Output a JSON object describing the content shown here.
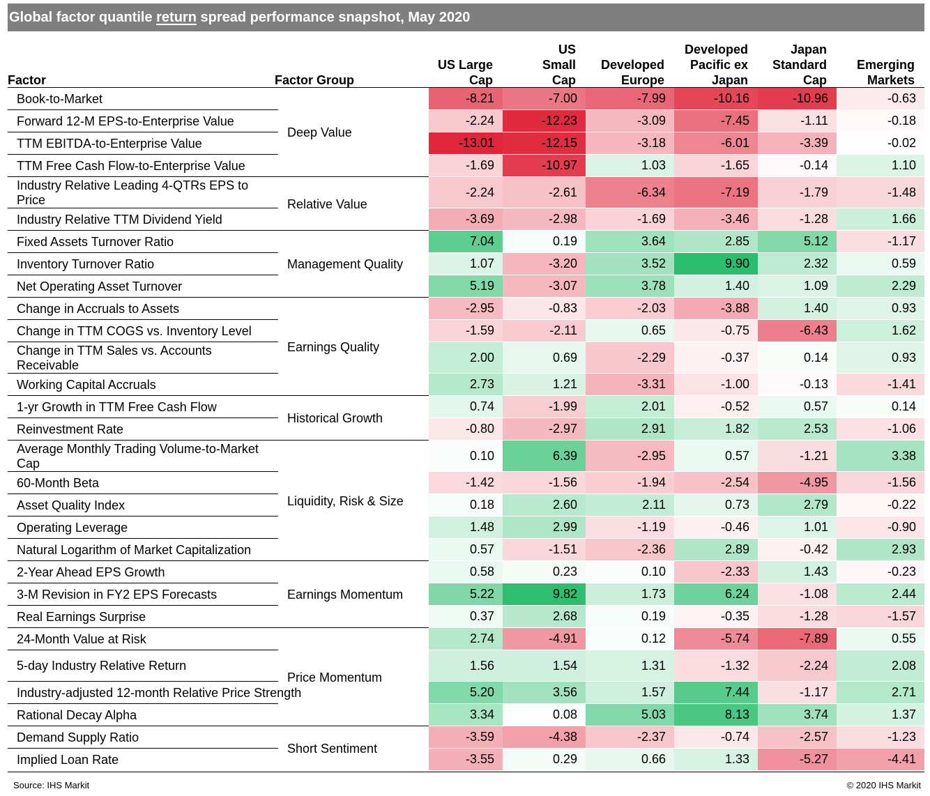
{
  "title": {
    "before": "Global factor quantile ",
    "underlined": "return",
    "after": " spread performance snapshot, May 2020"
  },
  "headers": {
    "factor": "Factor",
    "group": "Factor Group",
    "columns": [
      [
        "US Large",
        "Cap"
      ],
      [
        "US",
        "Small",
        "Cap"
      ],
      [
        "Developed",
        "Europe"
      ],
      [
        "Developed",
        "Pacific ex",
        "Japan"
      ],
      [
        "Japan",
        "Standard",
        "Cap"
      ],
      [
        "Emerging",
        "Markets"
      ]
    ]
  },
  "colors": {
    "title_bar": "#7f7f7f",
    "positive_max": "#00b050",
    "negative_max": "#e0263b",
    "neutral": "#ffffff"
  },
  "chart_data": {
    "type": "table",
    "columns": [
      "US Large Cap",
      "US Small Cap",
      "Developed Europe",
      "Developed Pacific ex Japan",
      "Japan Standard Cap",
      "Emerging Markets"
    ],
    "groups": [
      {
        "name": "Deep Value",
        "rows": [
          {
            "factor": "Book-to-Market",
            "values": [
              "-8.21",
              "-7.00",
              "-7.99",
              "-10.16",
              "-10.96",
              "-0.63"
            ]
          },
          {
            "factor": "Forward 12-M EPS-to-Enterprise Value",
            "values": [
              "-2.24",
              "-12.23",
              "-3.09",
              "-7.45",
              "-1.11",
              "-0.18"
            ]
          },
          {
            "factor": "TTM EBITDA-to-Enterprise Value",
            "values": [
              "-13.01",
              "-12.15",
              "-3.18",
              "-6.01",
              "-3.39",
              "-0.02"
            ]
          },
          {
            "factor": "TTM Free Cash Flow-to-Enterprise Value",
            "values": [
              "-1.69",
              "-10.97",
              "1.03",
              "-1.65",
              "-0.14",
              "1.10"
            ]
          }
        ]
      },
      {
        "name": "Relative Value",
        "rows": [
          {
            "factor": "Industry Relative Leading 4-QTRs EPS to Price",
            "values": [
              "-2.24",
              "-2.61",
              "-6.34",
              "-7.19",
              "-1.79",
              "-1.48"
            ]
          },
          {
            "factor": "Industry Relative TTM Dividend Yield",
            "values": [
              "-3.69",
              "-2.98",
              "-1.69",
              "-3.46",
              "-1.28",
              "1.66"
            ]
          }
        ]
      },
      {
        "name": "Management Quality",
        "rows": [
          {
            "factor": "Fixed Assets Turnover Ratio",
            "values": [
              "7.04",
              "0.19",
              "3.64",
              "2.85",
              "5.12",
              "-1.17"
            ]
          },
          {
            "factor": "Inventory Turnover Ratio",
            "values": [
              "1.07",
              "-3.20",
              "3.52",
              "9.90",
              "2.32",
              "0.59"
            ]
          },
          {
            "factor": "Net Operating Asset Turnover",
            "values": [
              "5.19",
              "-3.07",
              "3.78",
              "1.40",
              "1.09",
              "2.29"
            ]
          }
        ]
      },
      {
        "name": "Earnings Quality",
        "rows": [
          {
            "factor": "Change in Accruals to Assets",
            "values": [
              "-2.95",
              "-0.83",
              "-2.03",
              "-3.88",
              "1.40",
              "0.93"
            ]
          },
          {
            "factor": "Change in TTM COGS vs. Inventory Level",
            "values": [
              "-1.59",
              "-2.11",
              "0.65",
              "-0.75",
              "-6.43",
              "1.62"
            ]
          },
          {
            "factor": "Change in TTM Sales vs. Accounts Receivable",
            "values": [
              "2.00",
              "0.69",
              "-2.29",
              "-0.37",
              "0.14",
              "0.93"
            ]
          },
          {
            "factor": "Working Capital Accruals",
            "values": [
              "2.73",
              "1.21",
              "-3.31",
              "-1.00",
              "-0.13",
              "-1.41"
            ]
          }
        ]
      },
      {
        "name": "Historical Growth",
        "rows": [
          {
            "factor": "1-yr Growth in TTM Free Cash Flow",
            "values": [
              "0.74",
              "-1.99",
              "2.01",
              "-0.52",
              "0.57",
              "0.14"
            ]
          },
          {
            "factor": "Reinvestment Rate",
            "values": [
              "-0.80",
              "-2.97",
              "2.91",
              "1.82",
              "2.53",
              "-1.06"
            ]
          }
        ]
      },
      {
        "name": "Liquidity, Risk & Size",
        "rows": [
          {
            "factor": "Average Monthly Trading Volume-to-Market Cap",
            "values": [
              "0.10",
              "6.39",
              "-2.95",
              "0.57",
              "-1.21",
              "3.38"
            ]
          },
          {
            "factor": "60-Month Beta",
            "values": [
              "-1.42",
              "-1.56",
              "-1.94",
              "-2.54",
              "-4.95",
              "-1.56"
            ]
          },
          {
            "factor": "Asset Quality Index",
            "values": [
              "0.18",
              "2.60",
              "2.11",
              "0.73",
              "2.79",
              "-0.22"
            ]
          },
          {
            "factor": "Operating Leverage",
            "values": [
              "1.48",
              "2.99",
              "-1.19",
              "-0.46",
              "1.01",
              "-0.90"
            ]
          },
          {
            "factor": "Natural Logarithm of Market Capitalization",
            "values": [
              "0.57",
              "-1.51",
              "-2.36",
              "2.89",
              "-0.42",
              "2.93"
            ]
          }
        ]
      },
      {
        "name": "Earnings Momentum",
        "rows": [
          {
            "factor": "2-Year Ahead EPS Growth",
            "values": [
              "0.58",
              "0.23",
              "0.10",
              "-2.33",
              "1.43",
              "-0.23"
            ]
          },
          {
            "factor": "3-M Revision in FY2 EPS Forecasts",
            "values": [
              "5.22",
              "9.82",
              "1.73",
              "6.24",
              "-1.08",
              "2.44"
            ]
          },
          {
            "factor": "Real Earnings Surprise",
            "values": [
              "0.37",
              "2.68",
              "0.19",
              "-0.35",
              "-1.28",
              "-1.57"
            ]
          }
        ]
      },
      {
        "name": "Price Momentum",
        "rows": [
          {
            "factor": "24-Month Value at Risk",
            "values": [
              "2.74",
              "-4.91",
              "0.12",
              "-5.74",
              "-7.89",
              "0.55"
            ]
          },
          {
            "factor": "5-day Industry Relative Return",
            "values": [
              "1.56",
              "1.54",
              "1.31",
              "-1.32",
              "-2.24",
              "2.08"
            ]
          },
          {
            "factor": "Industry-adjusted 12-month Relative Price Strength",
            "values": [
              "5.20",
              "3.56",
              "1.57",
              "7.44",
              "-1.17",
              "2.71"
            ]
          },
          {
            "factor": "Rational Decay Alpha",
            "values": [
              "3.34",
              "0.08",
              "5.03",
              "8.13",
              "3.74",
              "1.37"
            ]
          }
        ]
      },
      {
        "name": "Short Sentiment",
        "rows": [
          {
            "factor": "Demand Supply Ratio",
            "values": [
              "-3.59",
              "-4.38",
              "-2.37",
              "-0.74",
              "-2.57",
              "-1.23"
            ]
          },
          {
            "factor": "Implied Loan Rate",
            "values": [
              "-3.55",
              "0.29",
              "0.66",
              "1.33",
              "-5.27",
              "-4.41"
            ]
          }
        ]
      }
    ]
  },
  "footer": {
    "source": "Source: IHS Markit",
    "copyright": "© 2020 IHS Markit"
  }
}
